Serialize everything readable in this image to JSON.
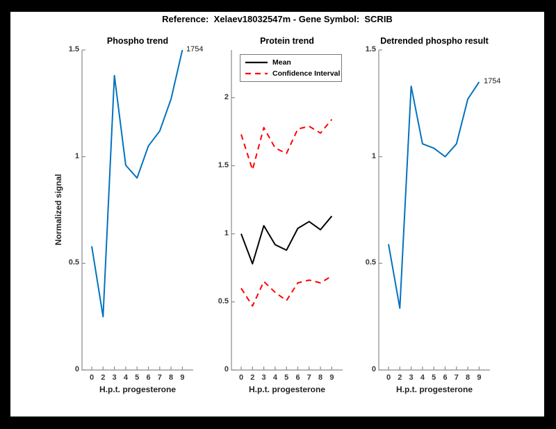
{
  "window": {
    "outer_background": "#000000",
    "figure_background": "#FFFFFF"
  },
  "figure_title": "Reference:  Xelaev18032547m - Gene Symbol:  SCRIB",
  "colors": {
    "signal_blue": "#0072BD",
    "ci_red": "#FF0000",
    "mean_black": "#000000",
    "axis_gray": "#8a8a8a"
  },
  "chart_data": [
    {
      "type": "line",
      "title": "Phospho trend",
      "xlabel": "H.p.t. progesterone",
      "ylabel": "Normalized signal",
      "x_tick_labels": [
        "0",
        "2",
        "3",
        "4",
        "5",
        "6",
        "7",
        "8",
        "9"
      ],
      "ylim": [
        0,
        1.5
      ],
      "ytick_values": [
        0,
        0.5,
        1,
        1.5
      ],
      "ytick_labels": [
        "0",
        "0.5",
        "1",
        "1.5"
      ],
      "grid": false,
      "end_label": "1754",
      "series": [
        {
          "name": "phospho-signal-1754",
          "color": "#0072BD",
          "dash": "solid",
          "width": 2,
          "values": [
            0.58,
            0.25,
            1.38,
            0.96,
            0.9,
            1.05,
            1.12,
            1.27,
            1.5
          ]
        }
      ]
    },
    {
      "type": "line",
      "title": "Protein trend",
      "xlabel": "H.p.t. progesterone",
      "ylabel": null,
      "x_tick_labels": [
        "0",
        "2",
        "3",
        "4",
        "5",
        "6",
        "7",
        "8",
        "9"
      ],
      "ylim": [
        0,
        2.35
      ],
      "ytick_values": [
        0,
        0.5,
        1,
        1.5,
        2
      ],
      "ytick_labels": [
        "0",
        "0.5",
        "1",
        "1.5",
        "2"
      ],
      "grid": false,
      "end_label": null,
      "legend": {
        "position": "top-left",
        "entries": [
          {
            "label": "Mean",
            "color": "#000000",
            "dash": "solid"
          },
          {
            "label": "Confidence Interval",
            "color": "#FF0000",
            "dash": "dashed"
          }
        ]
      },
      "series": [
        {
          "name": "protein-mean",
          "color": "#000000",
          "dash": "solid",
          "width": 2,
          "values": [
            1.0,
            0.78,
            1.06,
            0.92,
            0.88,
            1.04,
            1.09,
            1.03,
            1.13
          ]
        },
        {
          "name": "confidence-interval-upper",
          "color": "#FF0000",
          "dash": "dashed",
          "width": 2,
          "values": [
            1.73,
            1.47,
            1.78,
            1.63,
            1.59,
            1.77,
            1.79,
            1.74,
            1.84
          ]
        },
        {
          "name": "confidence-interval-lower",
          "color": "#FF0000",
          "dash": "dashed",
          "width": 2,
          "values": [
            0.6,
            0.47,
            0.65,
            0.57,
            0.51,
            0.64,
            0.66,
            0.64,
            0.69
          ]
        }
      ]
    },
    {
      "type": "line",
      "title": "Detrended phospho result",
      "xlabel": "H.p.t. progesterone",
      "ylabel": null,
      "x_tick_labels": [
        "0",
        "2",
        "3",
        "4",
        "5",
        "6",
        "7",
        "8",
        "9"
      ],
      "ylim": [
        0,
        1.5
      ],
      "ytick_values": [
        0,
        0.5,
        1,
        1.5
      ],
      "ytick_labels": [
        "0",
        "0.5",
        "1",
        "1.5"
      ],
      "grid": false,
      "end_label": "1754",
      "series": [
        {
          "name": "detrended-phospho-1754",
          "color": "#0072BD",
          "dash": "solid",
          "width": 2,
          "values": [
            0.59,
            0.29,
            1.33,
            1.06,
            1.04,
            1.0,
            1.06,
            1.27,
            1.35
          ]
        }
      ]
    }
  ]
}
